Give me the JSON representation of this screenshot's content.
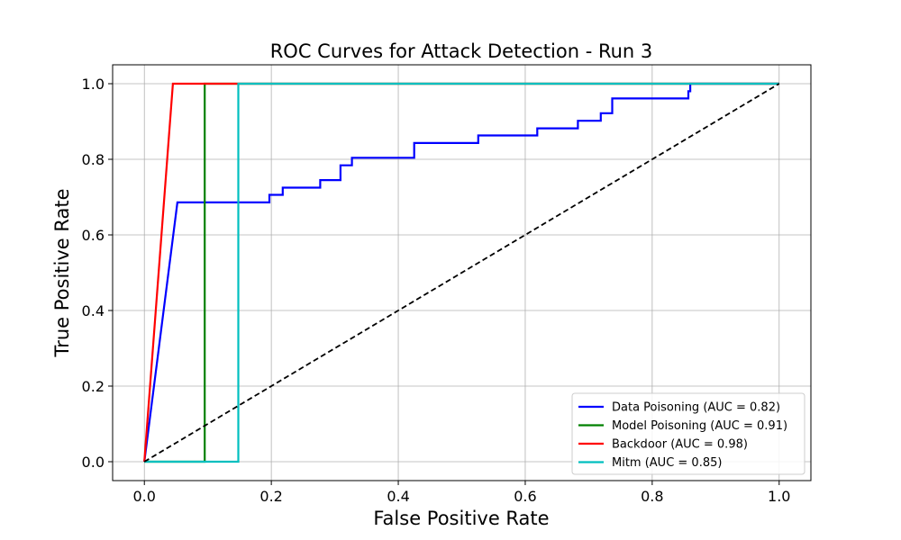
{
  "chart_data": {
    "type": "line",
    "title": "ROC Curves for Attack Detection - Run 3",
    "xlabel": "False Positive Rate",
    "ylabel": "True Positive Rate",
    "xlim": [
      -0.05,
      1.05
    ],
    "ylim": [
      -0.05,
      1.05
    ],
    "xticks": [
      "0.0",
      "0.2",
      "0.4",
      "0.6",
      "0.8",
      "1.0"
    ],
    "yticks": [
      "0.0",
      "0.2",
      "0.4",
      "0.6",
      "0.8",
      "1.0"
    ],
    "grid": true,
    "legend_position": "lower-right",
    "series": [
      {
        "name": "Data Poisoning (AUC = 0.82)",
        "color": "#0000ff",
        "x": [
          0.0,
          0.052,
          0.197,
          0.197,
          0.218,
          0.218,
          0.277,
          0.277,
          0.309,
          0.309,
          0.327,
          0.327,
          0.425,
          0.425,
          0.526,
          0.526,
          0.619,
          0.619,
          0.683,
          0.683,
          0.719,
          0.719,
          0.737,
          0.737,
          0.857,
          0.857,
          0.86,
          0.86,
          1.0
        ],
        "y": [
          0.0,
          0.686,
          0.686,
          0.706,
          0.706,
          0.725,
          0.725,
          0.745,
          0.745,
          0.784,
          0.784,
          0.804,
          0.804,
          0.843,
          0.843,
          0.863,
          0.863,
          0.882,
          0.882,
          0.902,
          0.902,
          0.922,
          0.922,
          0.961,
          0.961,
          0.98,
          0.98,
          1.0,
          1.0
        ]
      },
      {
        "name": "Model Poisoning (AUC = 0.91)",
        "color": "#008000",
        "x": [
          0.0,
          0.095,
          0.095,
          1.0
        ],
        "y": [
          0.0,
          0.0,
          1.0,
          1.0
        ]
      },
      {
        "name": "Backdoor (AUC = 0.98)",
        "color": "#ff0000",
        "x": [
          0.0,
          0.045,
          1.0
        ],
        "y": [
          0.0,
          1.0,
          1.0
        ]
      },
      {
        "name": "Mitm (AUC = 0.85)",
        "color": "#00bfbf",
        "x": [
          0.0,
          0.148,
          0.148,
          1.0
        ],
        "y": [
          0.0,
          0.0,
          1.0,
          1.0
        ]
      }
    ],
    "reference_line": {
      "x": [
        0.0,
        1.0
      ],
      "y": [
        0.0,
        1.0
      ],
      "color": "#000000",
      "style": "dashed"
    }
  }
}
